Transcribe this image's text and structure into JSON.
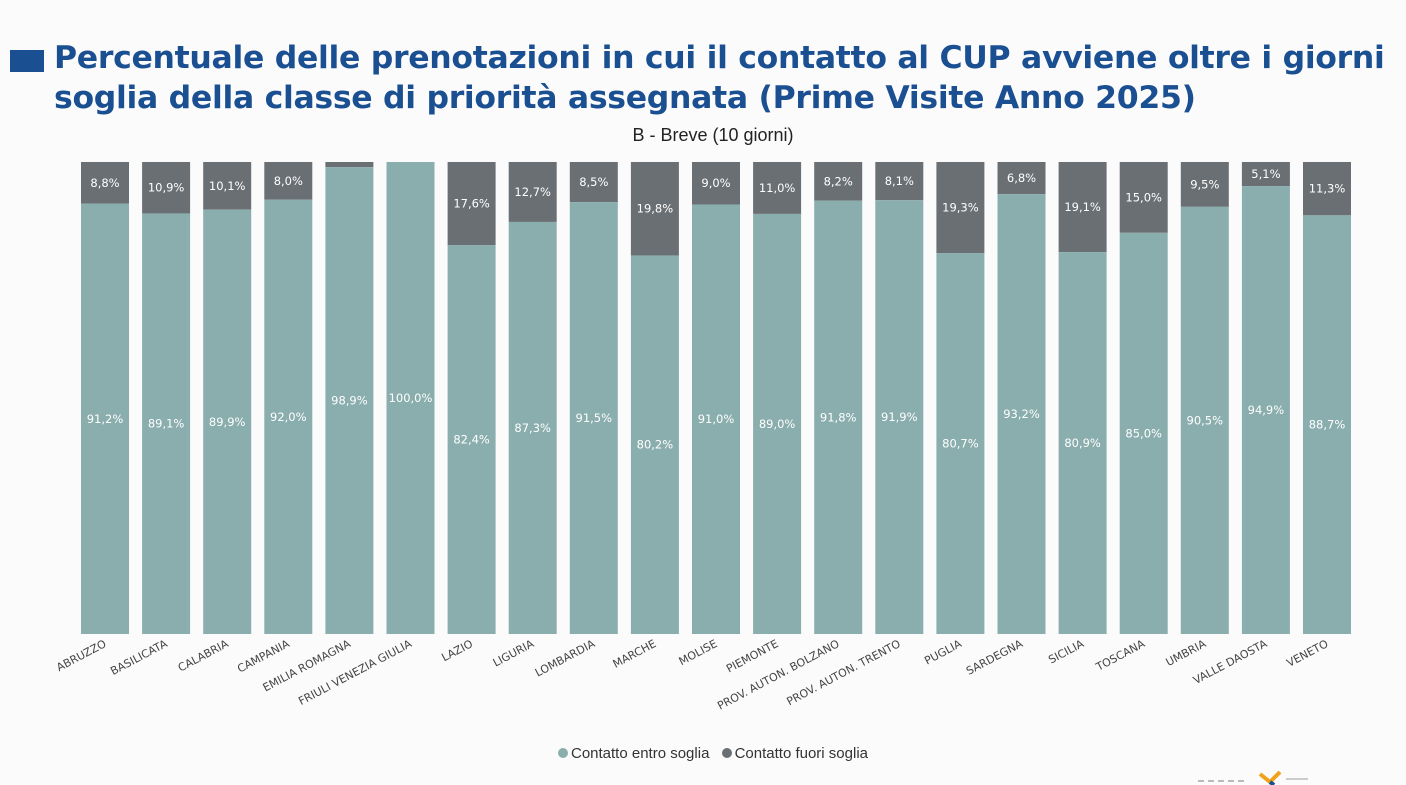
{
  "title": "Percentuale delle prenotazioni in cui il contatto al CUP avviene oltre i giorni soglia della classe di priorità assegnata (Prime Visite Anno 2025)",
  "colors": {
    "title": "#1a4f91",
    "entro": "#8aadad",
    "fuori": "#6a6f73"
  },
  "chart_data": {
    "type": "bar",
    "stacked": true,
    "title": "B - Breve (10 giorni)",
    "categories": [
      "ABRUZZO",
      "BASILICATA",
      "CALABRIA",
      "CAMPANIA",
      "EMILIA ROMAGNA",
      "FRIULI VENEZIA GIULIA",
      "LAZIO",
      "LIGURIA",
      "LOMBARDIA",
      "MARCHE",
      "MOLISE",
      "PIEMONTE",
      "PROV. AUTON. BOLZANO",
      "PROV. AUTON. TRENTO",
      "PUGLIA",
      "SARDEGNA",
      "SICILIA",
      "TOSCANA",
      "UMBRIA",
      "VALLE DAOSTA",
      "VENETO"
    ],
    "series": [
      {
        "name": "Contatto entro soglia",
        "values": [
          91.2,
          89.1,
          89.9,
          92.0,
          98.9,
          100.0,
          82.4,
          87.3,
          91.5,
          80.2,
          91.0,
          89.0,
          91.8,
          91.9,
          80.7,
          93.2,
          80.9,
          85.0,
          90.5,
          94.9,
          88.7
        ],
        "labels": [
          "91,2%",
          "89,1%",
          "89,9%",
          "92,0%",
          "98,9%",
          "100,0%",
          "82,4%",
          "87,3%",
          "91,5%",
          "80,2%",
          "91,0%",
          "89,0%",
          "91,8%",
          "91,9%",
          "80,7%",
          "93,2%",
          "80,9%",
          "85,0%",
          "90,5%",
          "94,9%",
          "88,7%"
        ]
      },
      {
        "name": "Contatto fuori soglia",
        "values": [
          8.8,
          10.9,
          10.1,
          8.0,
          1.1,
          0.0,
          17.6,
          12.7,
          8.5,
          19.8,
          9.0,
          11.0,
          8.2,
          8.1,
          19.3,
          6.8,
          19.1,
          15.0,
          9.5,
          5.1,
          11.3
        ],
        "labels": [
          "8,8%",
          "10,9%",
          "10,1%",
          "8,0%",
          "",
          "",
          "17,6%",
          "12,7%",
          "8,5%",
          "19,8%",
          "9,0%",
          "11,0%",
          "8,2%",
          "8,1%",
          "19,3%",
          "6,8%",
          "19,1%",
          "15,0%",
          "9,5%",
          "5,1%",
          "11,3%"
        ]
      }
    ],
    "ylim": [
      0,
      100
    ],
    "legend_position": "bottom"
  }
}
